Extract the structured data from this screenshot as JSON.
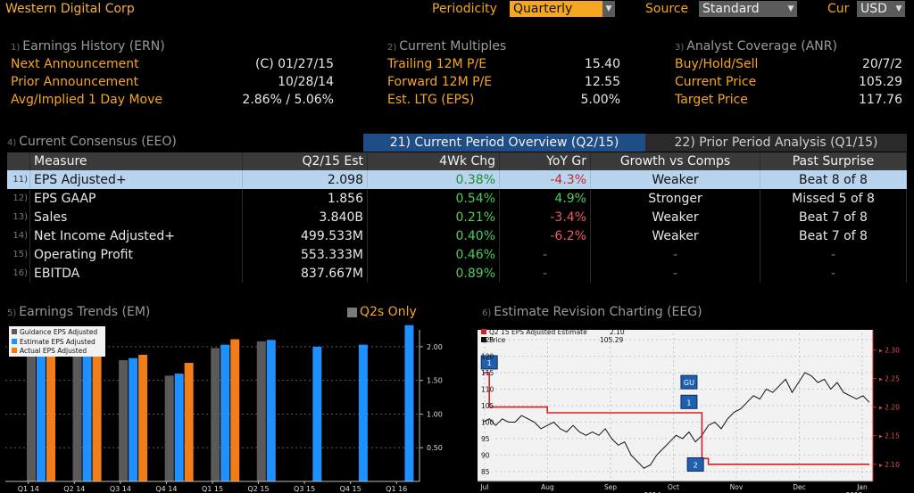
{
  "header": {
    "company": "Western Digital Corp",
    "periodicity_label": "Periodicity",
    "periodicity_value": "Quarterly",
    "source_label": "Source",
    "source_value": "Standard",
    "cur_label": "Cur",
    "cur_value": "USD"
  },
  "earnings_history": {
    "num": "1)",
    "title": "Earnings History (ERN)",
    "rows": [
      {
        "k": "Next Announcement",
        "v": "(C)  01/27/15"
      },
      {
        "k": "Prior Announcement",
        "v": "10/28/14"
      },
      {
        "k": "Avg/Implied 1 Day Move",
        "v": "2.86% / 5.06%"
      }
    ]
  },
  "current_multiples": {
    "num": "2)",
    "title": "Current Multiples",
    "rows": [
      {
        "k": "Trailing 12M P/E",
        "v": "15.40"
      },
      {
        "k": "Forward 12M P/E",
        "v": "12.55"
      },
      {
        "k": "Est. LTG (EPS)",
        "v": "5.00%"
      }
    ]
  },
  "analyst_coverage": {
    "num": "3)",
    "title": "Analyst Coverage (ANR)",
    "rows": [
      {
        "k": "Buy/Hold/Sell",
        "v": "20/7/2"
      },
      {
        "k": "Current Price",
        "v": "105.29"
      },
      {
        "k": "Target Price",
        "v": "117.76"
      }
    ]
  },
  "consensus": {
    "num": "4)",
    "title": "Current Consensus (EEO)",
    "tab1": "21) Current Period Overview (Q2/15)",
    "tab2": "22) Prior Period Analysis (Q1/15)",
    "headers": [
      "Measure",
      "Q2/15 Est",
      "4Wk Chg",
      "YoY Gr",
      "Growth vs Comps",
      "Past Surprise"
    ],
    "rows": [
      {
        "n": "11)",
        "measure": "EPS Adjusted+",
        "est": "2.098",
        "chg": "0.38%",
        "yoy": "-4.3%",
        "comps": "Weaker",
        "surprise": "Beat 8 of 8"
      },
      {
        "n": "12)",
        "measure": "EPS GAAP",
        "est": "1.856",
        "chg": "0.54%",
        "yoy": "4.9%",
        "comps": "Stronger",
        "surprise": "Missed 5 of 8"
      },
      {
        "n": "13)",
        "measure": "Sales",
        "est": "3.840B",
        "chg": "0.21%",
        "yoy": "-3.4%",
        "comps": "Weaker",
        "surprise": "Beat 7 of 8"
      },
      {
        "n": "14)",
        "measure": "Net Income Adjusted+",
        "est": "499.533M",
        "chg": "0.40%",
        "yoy": "-6.2%",
        "comps": "Weaker",
        "surprise": "Beat 7 of 8"
      },
      {
        "n": "15)",
        "measure": "Operating Profit",
        "est": "553.333M",
        "chg": "0.46%",
        "yoy": "-",
        "comps": "-",
        "surprise": "-"
      },
      {
        "n": "16)",
        "measure": "EBITDA",
        "est": "837.667M",
        "chg": "0.89%",
        "yoy": "-",
        "comps": "-",
        "surprise": "-"
      }
    ]
  },
  "trends": {
    "num": "5)",
    "title": "Earnings Trends (EM)",
    "toggle": "Q2s Only"
  },
  "revision": {
    "num": "6)",
    "title": "Estimate Revision Charting (EEG)"
  },
  "colors": {
    "guidance": "#5a5a5a",
    "estimate": "#1e90ff",
    "actual": "#f07c1a",
    "est_line": "#d62020",
    "price_line": "#e8e8e8"
  },
  "chart_data": [
    {
      "type": "bar",
      "categories": [
        "Q1 14",
        "Q2 14",
        "Q3 14",
        "Q4 14",
        "Q1 15",
        "Q2 15",
        "Q3 15",
        "Q4 15",
        "Q1 16"
      ],
      "series": [
        {
          "name": "Guidance EPS Adjusted",
          "values": [
            1.92,
            1.92,
            1.8,
            1.57,
            1.98,
            2.08,
            null,
            null,
            null
          ]
        },
        {
          "name": "Estimate EPS Adjusted",
          "values": [
            1.93,
            1.93,
            1.83,
            1.6,
            2.03,
            2.1,
            2.0,
            2.03,
            2.32
          ]
        },
        {
          "name": "Actual EPS Adjusted",
          "values": [
            2.07,
            2.06,
            1.88,
            1.76,
            2.11,
            null,
            null,
            null,
            null
          ]
        }
      ],
      "ylim": [
        0,
        2.25
      ],
      "yticks": [
        "0.50",
        "1.00",
        "1.50",
        "2.00"
      ],
      "ytick_values": [
        0.5,
        1.0,
        1.5,
        2.0
      ]
    },
    {
      "type": "line",
      "legend": [
        {
          "name": "Q2 15 EPS Adjusted Estimate",
          "value": "2.10"
        },
        {
          "name": "Price",
          "value": "105.29"
        }
      ],
      "x_labels": [
        "Jul",
        "Aug",
        "Sep",
        "Oct",
        "Nov",
        "Dec",
        "Jan"
      ],
      "x_sub_labels": [
        "2014",
        "2015"
      ],
      "left_ticks": [
        "85",
        "90",
        "95",
        "100",
        "105",
        "110",
        "115",
        "120",
        "125"
      ],
      "left_tick_values": [
        85,
        90,
        95,
        100,
        105,
        110,
        115,
        120,
        125
      ],
      "right_ticks": [
        "2.10",
        "2.15",
        "2.20",
        "2.25",
        "2.30"
      ],
      "right_tick_values": [
        2.1,
        2.15,
        2.2,
        2.25,
        2.3
      ],
      "left_ylim": [
        82,
        128
      ],
      "right_ylim": [
        2.07,
        2.335
      ],
      "price": [
        100,
        101,
        99,
        101,
        100,
        100,
        102,
        101,
        100,
        98,
        99,
        100,
        98,
        97,
        99,
        97,
        96,
        97,
        96,
        98,
        95,
        93,
        94,
        90,
        88,
        86,
        87,
        90,
        92,
        94,
        96,
        95,
        97,
        94,
        96,
        99,
        100,
        98,
        101,
        103,
        104,
        106,
        108,
        107,
        110,
        109,
        111,
        113,
        109,
        112,
        115,
        114,
        112,
        113,
        110,
        112,
        109,
        108,
        107,
        108,
        106
      ],
      "estimate": [
        2.26,
        2.2,
        2.2,
        2.2,
        2.2,
        2.2,
        2.2,
        2.2,
        2.2,
        2.2,
        2.19,
        2.19,
        2.19,
        2.19,
        2.19,
        2.19,
        2.19,
        2.19,
        2.19,
        2.19,
        2.19,
        2.19,
        2.19,
        2.19,
        2.19,
        2.19,
        2.19,
        2.19,
        2.19,
        2.19,
        2.19,
        2.19,
        2.19,
        2.19,
        2.11,
        2.1,
        2.1,
        2.1,
        2.1,
        2.1,
        2.1,
        2.1,
        2.1,
        2.1,
        2.1,
        2.1,
        2.1,
        2.1,
        2.1,
        2.1,
        2.1,
        2.1,
        2.1,
        2.1,
        2.1,
        2.1,
        2.1,
        2.1,
        2.1,
        2.1,
        2.1
      ],
      "markers": [
        {
          "label": "1",
          "x": 1,
          "y_price": 118
        },
        {
          "label": "GU",
          "x": 32,
          "y_price": 112
        },
        {
          "label": "1",
          "x": 32,
          "y_price": 106
        },
        {
          "label": "2",
          "x": 33,
          "y_price": 87
        }
      ]
    }
  ]
}
